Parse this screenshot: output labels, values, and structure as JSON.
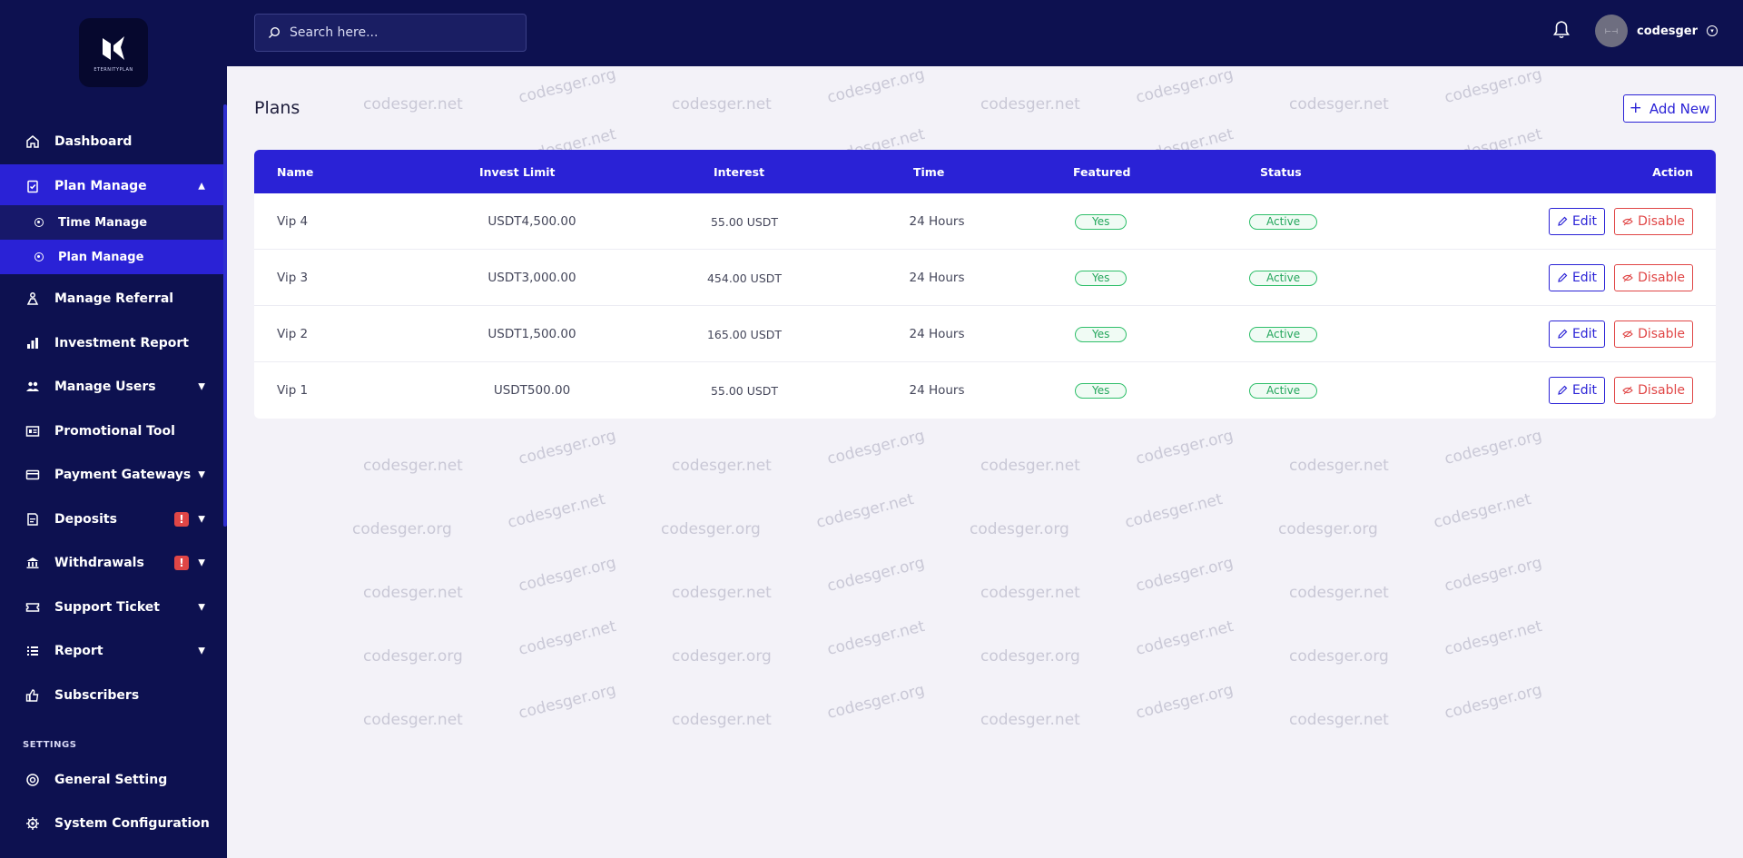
{
  "brand": {
    "logo_text": "ETERNITYPLAN"
  },
  "header": {
    "search_placeholder": "Search here...",
    "username": "codesger"
  },
  "sidebar": {
    "items": [
      {
        "label": "Dashboard",
        "icon": "home-icon"
      },
      {
        "label": "Plan Manage",
        "icon": "clipboard-icon",
        "active": true,
        "expanded": true
      },
      {
        "label": "Manage Referral",
        "icon": "referral-icon"
      },
      {
        "label": "Investment Report",
        "icon": "bar-chart-icon"
      },
      {
        "label": "Manage Users",
        "icon": "users-icon",
        "has_submenu": true
      },
      {
        "label": "Promotional Tool",
        "icon": "id-card-icon"
      },
      {
        "label": "Payment Gateways",
        "icon": "credit-card-icon",
        "has_submenu": true
      },
      {
        "label": "Deposits",
        "icon": "deposit-icon",
        "has_submenu": true,
        "alert": "!"
      },
      {
        "label": "Withdrawals",
        "icon": "bank-icon",
        "has_submenu": true,
        "alert": "!"
      },
      {
        "label": "Support Ticket",
        "icon": "ticket-icon",
        "has_submenu": true
      },
      {
        "label": "Report",
        "icon": "list-icon",
        "has_submenu": true
      },
      {
        "label": "Subscribers",
        "icon": "thumbs-up-icon"
      }
    ],
    "sub_items": [
      {
        "label": "Time Manage"
      },
      {
        "label": "Plan Manage",
        "active": true
      }
    ],
    "settings_label": "SETTINGS",
    "settings_items": [
      {
        "label": "General Setting",
        "icon": "settings-circle-icon"
      },
      {
        "label": "System Configuration",
        "icon": "gear-icon"
      }
    ]
  },
  "main": {
    "title": "Plans",
    "add_button": "Add New",
    "columns": [
      "Name",
      "Invest Limit",
      "Interest",
      "Time",
      "Featured",
      "Status",
      "Action"
    ],
    "rows": [
      {
        "name": "Vip 4",
        "invest_limit": "USDT4,500.00",
        "interest": "55.00 USDT",
        "time": "24 Hours",
        "featured": "Yes",
        "status": "Active"
      },
      {
        "name": "Vip 3",
        "invest_limit": "USDT3,000.00",
        "interest": "454.00 USDT",
        "time": "24 Hours",
        "featured": "Yes",
        "status": "Active"
      },
      {
        "name": "Vip 2",
        "invest_limit": "USDT1,500.00",
        "interest": "165.00 USDT",
        "time": "24 Hours",
        "featured": "Yes",
        "status": "Active"
      },
      {
        "name": "Vip 1",
        "invest_limit": "USDT500.00",
        "interest": "55.00 USDT",
        "time": "24 Hours",
        "featured": "Yes",
        "status": "Active"
      }
    ],
    "edit_label": "Edit",
    "disable_label": "Disable"
  },
  "watermarks": [
    "codesger.net",
    "codesger.org"
  ],
  "colors": {
    "sidebar_bg": "#0d1150",
    "accent": "#2a22d6",
    "success": "#24a65c",
    "danger": "#e04646",
    "page_bg": "#f3f2f8"
  }
}
